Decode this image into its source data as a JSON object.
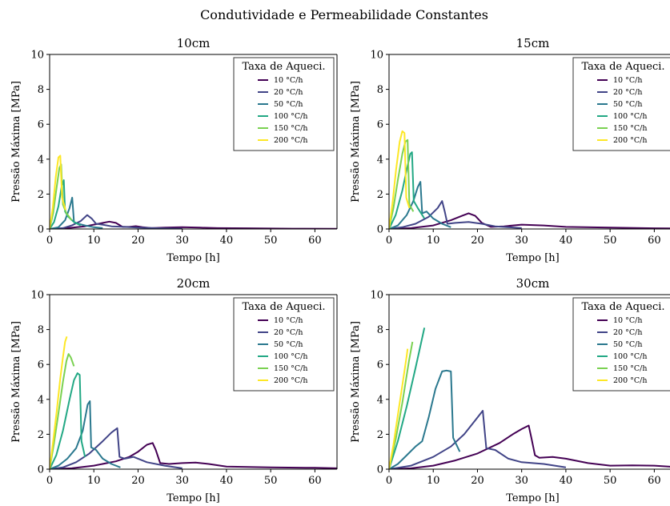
{
  "figure": {
    "suptitle": "Condutividade e Permeabilidade Constantes"
  },
  "chart_data": [
    {
      "type": "line",
      "title": "10cm",
      "xlabel": "Tempo [h]",
      "ylabel": "Pressão Máxima [MPa]",
      "xlim": [
        0,
        65
      ],
      "ylim": [
        0,
        10
      ],
      "xticks": [
        0,
        10,
        20,
        30,
        40,
        50,
        60
      ],
      "yticks": [
        0,
        2,
        4,
        6,
        8,
        10
      ],
      "grid": false,
      "legend": {
        "title": "Taxa de Aqueci.",
        "placement": "top-right"
      },
      "series": [
        {
          "name": "10 °C/h",
          "color": "#440154",
          "x": [
            0,
            4,
            8,
            11,
            13.5,
            15,
            16.5,
            18,
            19.5,
            21,
            23,
            26,
            30,
            34,
            38,
            45,
            55,
            65
          ],
          "y": [
            0,
            0.05,
            0.15,
            0.3,
            0.42,
            0.35,
            0.12,
            0.12,
            0.16,
            0.1,
            0.05,
            0.08,
            0.1,
            0.08,
            0.05,
            0.04,
            0.02,
            0.01
          ]
        },
        {
          "name": "20 °C/h",
          "color": "#414487",
          "x": [
            0,
            3,
            5,
            7,
            8.5,
            9.5,
            10.5,
            12,
            14,
            17,
            20,
            25,
            30
          ],
          "y": [
            0,
            0.05,
            0.2,
            0.45,
            0.8,
            0.6,
            0.3,
            0.25,
            0.15,
            0.12,
            0.08,
            0.04,
            0.01
          ]
        },
        {
          "name": "50 °C/h",
          "color": "#2a788e",
          "x": [
            0,
            2,
            3.5,
            4.5,
            5.1,
            5.5,
            6.5,
            8,
            10,
            12
          ],
          "y": [
            0,
            0.1,
            0.5,
            1.2,
            1.8,
            0.4,
            0.3,
            0.2,
            0.1,
            0.05
          ]
        },
        {
          "name": "100 °C/h",
          "color": "#22a884",
          "x": [
            0,
            1,
            2,
            2.7,
            3.2,
            3.5,
            4.2,
            5.5,
            7
          ],
          "y": [
            0,
            0.4,
            1.3,
            2.4,
            2.8,
            1.0,
            0.7,
            0.4,
            0.2
          ]
        },
        {
          "name": "150 °C/h",
          "color": "#7ad151",
          "x": [
            0,
            0.8,
            1.6,
            2.2,
            2.6,
            3.0,
            3.8,
            5
          ],
          "y": [
            0,
            0.9,
            2.4,
            3.5,
            3.7,
            1.4,
            0.9,
            0.5
          ]
        },
        {
          "name": "200 °C/h",
          "color": "#fde725",
          "x": [
            0,
            0.7,
            1.4,
            2.0,
            2.4,
            2.8,
            3.6
          ],
          "y": [
            0,
            1.2,
            3.0,
            4.1,
            4.2,
            1.8,
            1.1
          ]
        }
      ]
    },
    {
      "type": "line",
      "title": "15cm",
      "xlabel": "Tempo [h]",
      "ylabel": "Pressão Máxima [MPa]",
      "xlim": [
        0,
        65
      ],
      "ylim": [
        0,
        10
      ],
      "xticks": [
        0,
        10,
        20,
        30,
        40,
        50,
        60
      ],
      "yticks": [
        0,
        2,
        4,
        6,
        8,
        10
      ],
      "grid": false,
      "legend": {
        "title": "Taxa de Aqueci.",
        "placement": "top-right"
      },
      "series": [
        {
          "name": "10 °C/h",
          "color": "#440154",
          "x": [
            0,
            5,
            10,
            14,
            16.5,
            18,
            19.5,
            21,
            23,
            26,
            30,
            35,
            40,
            50,
            60,
            65
          ],
          "y": [
            0,
            0.05,
            0.2,
            0.5,
            0.75,
            0.9,
            0.75,
            0.35,
            0.12,
            0.15,
            0.25,
            0.2,
            0.12,
            0.08,
            0.04,
            0.03
          ]
        },
        {
          "name": "20 °C/h",
          "color": "#414487",
          "x": [
            0,
            3,
            6,
            9,
            11,
            12,
            12.6,
            13.2,
            15,
            18,
            21,
            24,
            30
          ],
          "y": [
            0,
            0.1,
            0.3,
            0.7,
            1.2,
            1.6,
            1.0,
            0.3,
            0.35,
            0.4,
            0.3,
            0.15,
            0.05
          ]
        },
        {
          "name": "50 °C/h",
          "color": "#2a788e",
          "x": [
            0,
            2,
            4,
            5.5,
            6.5,
            7.1,
            7.5,
            8.5,
            10,
            12,
            14
          ],
          "y": [
            0,
            0.2,
            0.8,
            1.6,
            2.4,
            2.7,
            0.9,
            1.0,
            0.6,
            0.3,
            0.1
          ]
        },
        {
          "name": "100 °C/h",
          "color": "#22a884",
          "x": [
            0,
            1.5,
            3,
            4,
            4.8,
            5.2,
            5.6,
            6.5,
            8
          ],
          "y": [
            0,
            0.8,
            2.2,
            3.4,
            4.3,
            4.4,
            1.6,
            1.2,
            0.6
          ]
        },
        {
          "name": "150 °C/h",
          "color": "#7ad151",
          "x": [
            0,
            1,
            2,
            3,
            3.7,
            4.2,
            4.6,
            5.5
          ],
          "y": [
            0,
            1.2,
            2.8,
            4.3,
            5.0,
            5.1,
            1.4,
            1.0
          ]
        },
        {
          "name": "200 °C/h",
          "color": "#fde725",
          "x": [
            0,
            0.8,
            1.6,
            2.4,
            3.0,
            3.5,
            3.9,
            4.6
          ],
          "y": [
            0,
            1.5,
            3.4,
            5.0,
            5.6,
            5.5,
            1.8,
            1.2
          ]
        }
      ]
    },
    {
      "type": "line",
      "title": "20cm",
      "xlabel": "Tempo [h]",
      "ylabel": "Pressão Máxima [MPa]",
      "xlim": [
        0,
        65
      ],
      "ylim": [
        0,
        10
      ],
      "xticks": [
        0,
        10,
        20,
        30,
        40,
        50,
        60
      ],
      "yticks": [
        0,
        2,
        4,
        6,
        8,
        10
      ],
      "grid": false,
      "legend": {
        "title": "Taxa de Aqueci.",
        "placement": "top-right"
      },
      "series": [
        {
          "name": "10 °C/h",
          "color": "#440154",
          "x": [
            0,
            5,
            10,
            15,
            18,
            20,
            22,
            23.3,
            24,
            25,
            27,
            30,
            33,
            36,
            40,
            50,
            60,
            65
          ],
          "y": [
            0,
            0.05,
            0.2,
            0.45,
            0.7,
            1.0,
            1.4,
            1.5,
            1.1,
            0.35,
            0.3,
            0.35,
            0.38,
            0.3,
            0.15,
            0.1,
            0.08,
            0.05
          ]
        },
        {
          "name": "20 °C/h",
          "color": "#414487",
          "x": [
            0,
            3,
            6,
            9,
            12,
            14,
            15.3,
            15.8,
            17,
            19,
            22,
            26,
            30
          ],
          "y": [
            0,
            0.1,
            0.4,
            0.9,
            1.6,
            2.1,
            2.35,
            0.7,
            0.6,
            0.7,
            0.4,
            0.2,
            0.05
          ]
        },
        {
          "name": "50 °C/h",
          "color": "#2a788e",
          "x": [
            0,
            2,
            4,
            6,
            7.5,
            8.6,
            9.1,
            9.4,
            10.5,
            12,
            14,
            16
          ],
          "y": [
            0,
            0.2,
            0.6,
            1.2,
            2.2,
            3.7,
            3.9,
            1.25,
            1.1,
            0.6,
            0.3,
            0.1
          ]
        },
        {
          "name": "100 °C/h",
          "color": "#22a884",
          "x": [
            0,
            1.5,
            3,
            4.5,
            5.5,
            6.3,
            6.8,
            7.2,
            8
          ],
          "y": [
            0,
            0.8,
            2.2,
            4.0,
            5.1,
            5.5,
            5.4,
            1.6,
            0.7
          ]
        },
        {
          "name": "150 °C/h",
          "color": "#7ad151",
          "x": [
            0,
            1,
            2,
            3,
            3.8,
            4.3,
            4.8,
            5.5
          ],
          "y": [
            0,
            1.5,
            3.2,
            5.0,
            6.2,
            6.6,
            6.4,
            5.9
          ]
        },
        {
          "name": "200 °C/h",
          "color": "#fde725",
          "x": [
            0,
            0.8,
            1.6,
            2.4,
            3.0,
            3.5,
            3.9
          ],
          "y": [
            0,
            1.6,
            3.3,
            5.2,
            6.4,
            7.3,
            7.6
          ]
        }
      ]
    },
    {
      "type": "line",
      "title": "30cm",
      "xlabel": "Tempo [h]",
      "ylabel": "Pressão Máxima [MPa]",
      "xlim": [
        0,
        65
      ],
      "ylim": [
        0,
        10
      ],
      "xticks": [
        0,
        10,
        20,
        30,
        40,
        50,
        60
      ],
      "yticks": [
        0,
        2,
        4,
        6,
        8,
        10
      ],
      "grid": false,
      "legend": {
        "title": "Taxa de Aqueci.",
        "placement": "top-right"
      },
      "series": [
        {
          "name": "10 °C/h",
          "color": "#440154",
          "x": [
            0,
            5,
            10,
            15,
            20,
            25,
            28,
            30,
            31.6,
            32.2,
            33,
            34,
            37,
            40,
            45,
            50,
            55,
            60,
            65
          ],
          "y": [
            0,
            0.05,
            0.2,
            0.5,
            0.9,
            1.5,
            2.0,
            2.3,
            2.5,
            1.8,
            0.8,
            0.65,
            0.7,
            0.6,
            0.35,
            0.2,
            0.22,
            0.2,
            0.12
          ]
        },
        {
          "name": "20 °C/h",
          "color": "#414487",
          "x": [
            0,
            5,
            10,
            14,
            17,
            19.5,
            21.2,
            22,
            24,
            27,
            30,
            35,
            40
          ],
          "y": [
            0,
            0.2,
            0.7,
            1.3,
            2.0,
            2.8,
            3.35,
            1.2,
            1.1,
            0.6,
            0.4,
            0.3,
            0.1
          ]
        },
        {
          "name": "50 °C/h",
          "color": "#2a788e",
          "x": [
            0,
            2,
            4,
            6,
            7.5,
            9,
            10.5,
            12,
            13,
            14,
            14.5,
            16
          ],
          "y": [
            0,
            0.3,
            0.8,
            1.3,
            1.6,
            3.0,
            4.6,
            5.6,
            5.65,
            5.6,
            1.8,
            1.0
          ]
        },
        {
          "name": "100 °C/h",
          "color": "#22a884",
          "x": [
            0,
            2,
            4,
            6,
            8
          ],
          "y": [
            0,
            1.6,
            3.6,
            5.8,
            8.1
          ]
        },
        {
          "name": "150 °C/h",
          "color": "#7ad151",
          "x": [
            0,
            1.5,
            3,
            4.5,
            5.3
          ],
          "y": [
            0,
            1.7,
            3.8,
            6.2,
            7.3
          ]
        },
        {
          "name": "200 °C/h",
          "color": "#fde725",
          "x": [
            0,
            1,
            2,
            3,
            4,
            4.2
          ],
          "y": [
            0,
            1.4,
            3.1,
            4.8,
            6.5,
            6.9
          ]
        }
      ]
    }
  ]
}
